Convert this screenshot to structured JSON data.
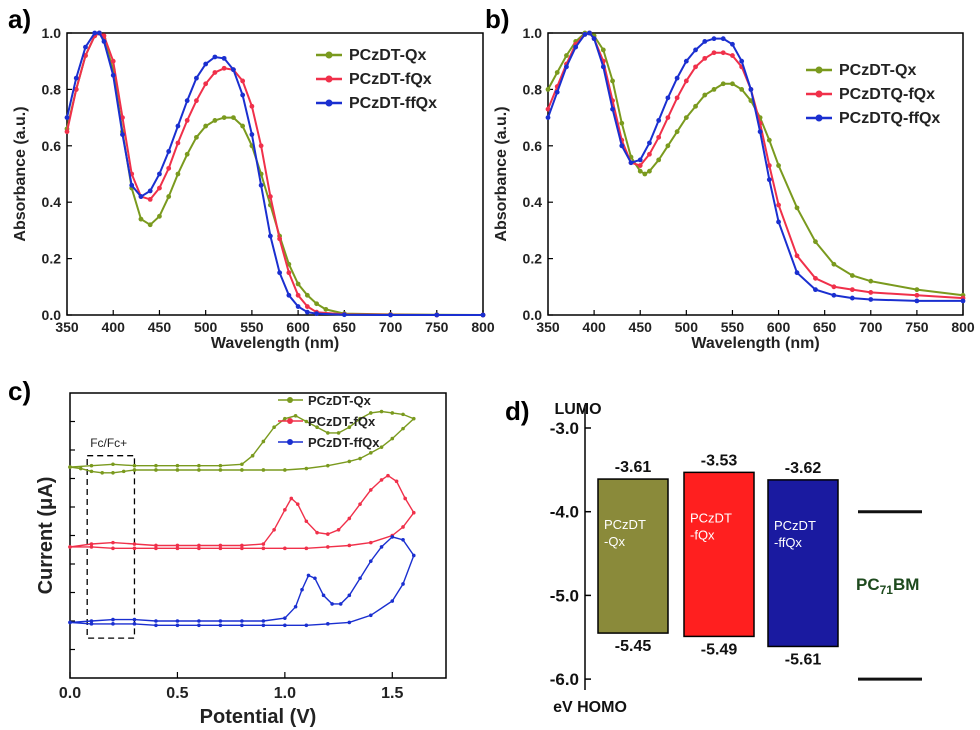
{
  "colors": {
    "green": "#7a9a1e",
    "red": "#f0304a",
    "blue": "#1a2fd0"
  },
  "icons": {
    "marker": "dot-marker"
  },
  "chart_data": [
    {
      "panel": "a)",
      "type": "line",
      "xlabel": "Wavelength (nm)",
      "ylabel": "Absorbance (a.u.)",
      "xlim": [
        350,
        800
      ],
      "ylim": [
        0,
        1.0
      ],
      "xticks": [
        350,
        400,
        450,
        500,
        550,
        600,
        650,
        700,
        750,
        800
      ],
      "yticks": [
        0.0,
        0.2,
        0.4,
        0.6,
        0.8,
        1.0
      ],
      "legend_position": "top-right",
      "series": [
        {
          "name": "PCzDT-Qx",
          "color": "#7a9a1e",
          "x": [
            350,
            360,
            370,
            380,
            385,
            390,
            400,
            410,
            420,
            430,
            440,
            450,
            460,
            470,
            480,
            490,
            500,
            510,
            520,
            530,
            540,
            550,
            560,
            570,
            580,
            590,
            600,
            610,
            620,
            630,
            650,
            700,
            750,
            800
          ],
          "y": [
            0.66,
            0.8,
            0.92,
            0.99,
            1.0,
            0.98,
            0.87,
            0.65,
            0.45,
            0.34,
            0.32,
            0.35,
            0.42,
            0.5,
            0.57,
            0.63,
            0.67,
            0.69,
            0.7,
            0.7,
            0.67,
            0.6,
            0.5,
            0.39,
            0.28,
            0.18,
            0.11,
            0.07,
            0.04,
            0.02,
            0.005,
            0.002,
            0.001,
            0.0
          ]
        },
        {
          "name": "PCzDT-fQx",
          "color": "#f0304a",
          "x": [
            350,
            360,
            370,
            380,
            385,
            390,
            400,
            410,
            420,
            430,
            440,
            450,
            460,
            470,
            480,
            490,
            500,
            510,
            520,
            530,
            540,
            550,
            560,
            570,
            580,
            590,
            600,
            610,
            620,
            650,
            700,
            750,
            800
          ],
          "y": [
            0.65,
            0.8,
            0.92,
            0.99,
            1.0,
            0.99,
            0.9,
            0.7,
            0.5,
            0.42,
            0.41,
            0.45,
            0.52,
            0.61,
            0.69,
            0.76,
            0.82,
            0.86,
            0.875,
            0.87,
            0.83,
            0.74,
            0.6,
            0.42,
            0.27,
            0.15,
            0.07,
            0.03,
            0.01,
            0.002,
            0.001,
            0.0,
            0.0
          ]
        },
        {
          "name": "PCzDT-ffQx",
          "color": "#1a2fd0",
          "x": [
            350,
            360,
            370,
            380,
            385,
            390,
            400,
            410,
            420,
            430,
            440,
            450,
            460,
            470,
            480,
            490,
            500,
            510,
            520,
            530,
            540,
            550,
            560,
            570,
            580,
            590,
            600,
            610,
            620,
            650,
            700,
            750,
            800
          ],
          "y": [
            0.7,
            0.84,
            0.95,
            1.0,
            1.0,
            0.97,
            0.85,
            0.64,
            0.46,
            0.42,
            0.44,
            0.5,
            0.58,
            0.67,
            0.76,
            0.84,
            0.89,
            0.915,
            0.91,
            0.87,
            0.78,
            0.64,
            0.46,
            0.28,
            0.15,
            0.07,
            0.03,
            0.01,
            0.005,
            0.001,
            0.0,
            0.0,
            0.0
          ]
        }
      ]
    },
    {
      "panel": "b)",
      "type": "line",
      "xlabel": "Wavelength (nm)",
      "ylabel": "Absorbance (a.u.)",
      "xlim": [
        350,
        800
      ],
      "ylim": [
        0,
        1.0
      ],
      "xticks": [
        350,
        400,
        450,
        500,
        550,
        600,
        650,
        700,
        750,
        800
      ],
      "yticks": [
        0.0,
        0.2,
        0.4,
        0.6,
        0.8,
        1.0
      ],
      "legend_position": "right",
      "series": [
        {
          "name": "PCzDT-Qx",
          "color": "#7a9a1e",
          "x": [
            350,
            360,
            370,
            380,
            390,
            395,
            400,
            410,
            420,
            430,
            440,
            450,
            455,
            460,
            470,
            480,
            490,
            500,
            510,
            520,
            530,
            540,
            550,
            560,
            570,
            580,
            590,
            600,
            620,
            640,
            660,
            680,
            700,
            750,
            800
          ],
          "y": [
            0.8,
            0.86,
            0.92,
            0.97,
            1.0,
            1.0,
            0.99,
            0.94,
            0.83,
            0.68,
            0.56,
            0.51,
            0.5,
            0.51,
            0.55,
            0.6,
            0.65,
            0.7,
            0.74,
            0.78,
            0.8,
            0.82,
            0.82,
            0.8,
            0.76,
            0.7,
            0.62,
            0.53,
            0.38,
            0.26,
            0.18,
            0.14,
            0.12,
            0.09,
            0.07
          ]
        },
        {
          "name": "PCzDTQ-fQx",
          "color": "#f0304a",
          "x": [
            350,
            360,
            370,
            380,
            390,
            395,
            400,
            410,
            420,
            430,
            440,
            450,
            460,
            470,
            480,
            490,
            500,
            510,
            520,
            530,
            540,
            550,
            560,
            570,
            580,
            590,
            600,
            620,
            640,
            660,
            680,
            700,
            750,
            800
          ],
          "y": [
            0.73,
            0.81,
            0.89,
            0.96,
            0.995,
            1.0,
            0.98,
            0.9,
            0.76,
            0.62,
            0.54,
            0.53,
            0.57,
            0.63,
            0.7,
            0.77,
            0.83,
            0.88,
            0.91,
            0.93,
            0.93,
            0.92,
            0.88,
            0.8,
            0.68,
            0.53,
            0.39,
            0.21,
            0.13,
            0.1,
            0.09,
            0.08,
            0.07,
            0.06
          ]
        },
        {
          "name": "PCzDTQ-ffQx",
          "color": "#1a2fd0",
          "x": [
            350,
            360,
            370,
            380,
            390,
            395,
            400,
            410,
            420,
            430,
            440,
            450,
            460,
            470,
            480,
            490,
            500,
            510,
            520,
            530,
            540,
            550,
            560,
            570,
            580,
            590,
            600,
            620,
            640,
            660,
            680,
            700,
            750,
            800
          ],
          "y": [
            0.7,
            0.79,
            0.88,
            0.95,
            0.995,
            1.0,
            0.98,
            0.88,
            0.73,
            0.6,
            0.54,
            0.55,
            0.61,
            0.69,
            0.77,
            0.84,
            0.9,
            0.94,
            0.97,
            0.98,
            0.98,
            0.96,
            0.9,
            0.8,
            0.65,
            0.48,
            0.33,
            0.15,
            0.09,
            0.07,
            0.06,
            0.055,
            0.05,
            0.05
          ]
        }
      ]
    },
    {
      "panel": "c)",
      "type": "line",
      "xlabel": "Potential (V)",
      "ylabel": "Current (μA)",
      "xlim": [
        0.0,
        1.75
      ],
      "ylim": [
        0,
        10
      ],
      "xticks": [
        0.0,
        0.5,
        1.0,
        1.5
      ],
      "legend_position": "top-right",
      "annotation": {
        "text": "Fc/Fc+",
        "x_range": [
          0.08,
          0.3
        ]
      },
      "series": [
        {
          "name": "PCzDT-Qx",
          "color": "#7a9a1e",
          "x": [
            0.0,
            0.1,
            0.2,
            0.3,
            0.4,
            0.5,
            0.6,
            0.7,
            0.8,
            0.85,
            0.9,
            0.95,
            1.0,
            1.05,
            1.1,
            1.15,
            1.2,
            1.25,
            1.3,
            1.35,
            1.4,
            1.45,
            1.5,
            1.55,
            1.6,
            1.55,
            1.5,
            1.45,
            1.4,
            1.35,
            1.3,
            1.2,
            1.1,
            1.0,
            0.9,
            0.8,
            0.7,
            0.6,
            0.5,
            0.4,
            0.3,
            0.25,
            0.2,
            0.15,
            0.1,
            0.05,
            0.0
          ],
          "y": [
            7.4,
            7.45,
            7.5,
            7.45,
            7.45,
            7.45,
            7.45,
            7.45,
            7.5,
            7.8,
            8.3,
            8.8,
            9.1,
            9.2,
            9.0,
            8.8,
            8.6,
            8.6,
            8.8,
            9.1,
            9.3,
            9.35,
            9.3,
            9.25,
            9.1,
            8.75,
            8.4,
            8.1,
            7.9,
            7.7,
            7.6,
            7.45,
            7.35,
            7.3,
            7.3,
            7.3,
            7.3,
            7.3,
            7.3,
            7.3,
            7.3,
            7.25,
            7.2,
            7.2,
            7.25,
            7.35,
            7.4
          ]
        },
        {
          "name": "PCzDT-fQx",
          "color": "#f0304a",
          "x": [
            0.0,
            0.1,
            0.2,
            0.3,
            0.4,
            0.5,
            0.6,
            0.7,
            0.8,
            0.9,
            0.95,
            1.0,
            1.03,
            1.06,
            1.1,
            1.15,
            1.2,
            1.25,
            1.3,
            1.35,
            1.4,
            1.45,
            1.48,
            1.52,
            1.56,
            1.6,
            1.55,
            1.5,
            1.4,
            1.3,
            1.2,
            1.1,
            1.0,
            0.9,
            0.8,
            0.7,
            0.6,
            0.5,
            0.4,
            0.3,
            0.2,
            0.1,
            0.0
          ],
          "y": [
            4.6,
            4.7,
            4.75,
            4.7,
            4.65,
            4.65,
            4.65,
            4.65,
            4.65,
            4.7,
            5.2,
            5.9,
            6.3,
            6.1,
            5.5,
            5.1,
            5.05,
            5.2,
            5.6,
            6.1,
            6.6,
            6.95,
            7.1,
            6.9,
            6.3,
            5.8,
            5.3,
            5.0,
            4.75,
            4.65,
            4.6,
            4.55,
            4.55,
            4.55,
            4.55,
            4.55,
            4.55,
            4.55,
            4.55,
            4.55,
            4.55,
            4.6,
            4.6
          ]
        },
        {
          "name": "PCzDT-ffQx",
          "color": "#1a2fd0",
          "x": [
            0.0,
            0.1,
            0.2,
            0.3,
            0.4,
            0.5,
            0.6,
            0.7,
            0.8,
            0.9,
            1.0,
            1.05,
            1.08,
            1.11,
            1.14,
            1.18,
            1.22,
            1.26,
            1.3,
            1.35,
            1.4,
            1.45,
            1.5,
            1.55,
            1.6,
            1.55,
            1.5,
            1.4,
            1.3,
            1.2,
            1.1,
            1.0,
            0.9,
            0.8,
            0.7,
            0.6,
            0.5,
            0.4,
            0.3,
            0.2,
            0.1,
            0.0
          ],
          "y": [
            1.95,
            2.0,
            2.05,
            2.05,
            2.0,
            2.0,
            2.0,
            2.0,
            2.0,
            2.0,
            2.1,
            2.5,
            3.1,
            3.6,
            3.5,
            2.9,
            2.6,
            2.6,
            2.9,
            3.5,
            4.1,
            4.6,
            4.95,
            4.85,
            4.3,
            3.3,
            2.7,
            2.2,
            1.95,
            1.9,
            1.85,
            1.85,
            1.85,
            1.85,
            1.85,
            1.85,
            1.85,
            1.85,
            1.9,
            1.9,
            1.9,
            1.95
          ]
        }
      ]
    },
    {
      "panel": "d)",
      "type": "bar",
      "ylabel_top": "LUMO",
      "ylabel_bottom": "eV HOMO",
      "ylim": [
        -6.0,
        -2.8
      ],
      "yticks": [
        "-3.0",
        "-4.0",
        "-5.0",
        "-6.0"
      ],
      "bars": [
        {
          "name": "PCzDT\n-Qx",
          "lumo": -3.61,
          "homo": -5.45,
          "lumo_label": "-3.61",
          "homo_label": "-5.45",
          "color": "#8a8a3a"
        },
        {
          "name": "PCzDT\n-fQx",
          "lumo": -3.53,
          "homo": -5.49,
          "lumo_label": "-3.53",
          "homo_label": "-5.49",
          "color": "#ff1f1f"
        },
        {
          "name": "PCzDT\n-ffQx",
          "lumo": -3.62,
          "homo": -5.61,
          "lumo_label": "-3.62",
          "homo_label": "-5.61",
          "color": "#1a1aa0"
        }
      ],
      "reference": {
        "name": "PC",
        "sub": "71",
        "suffix": "BM",
        "lumo": -4.0,
        "homo": -6.0,
        "color": "#1e4a1e"
      }
    }
  ]
}
